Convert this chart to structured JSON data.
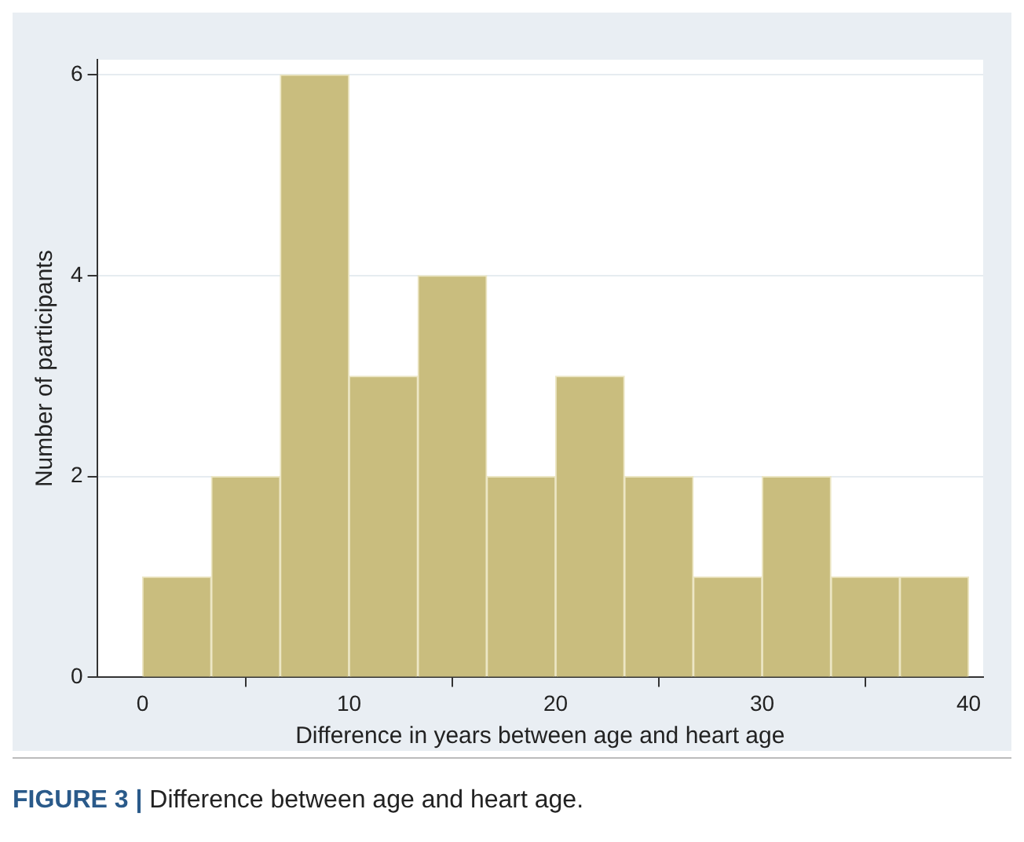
{
  "chart_data": {
    "type": "histogram",
    "xlabel": "Difference in years between age and heart age",
    "ylabel": "Number of participants",
    "bins": [
      0,
      3.33,
      6.67,
      10,
      13.33,
      16.67,
      20,
      23.33,
      26.67,
      30,
      33.33,
      36.67,
      40
    ],
    "values": [
      1,
      2,
      6,
      3,
      4,
      2,
      3,
      2,
      1,
      2,
      1,
      1
    ],
    "color": "#c9bd7e",
    "xlim": [
      -2.2,
      40.7
    ],
    "xticks": [
      0,
      10,
      20,
      30,
      40
    ],
    "ylim": [
      0,
      6.15
    ],
    "yticks": [
      0,
      2,
      4,
      6
    ],
    "grid": "y",
    "annotations": [
      "FIGURE 3 | Difference between age and heart age."
    ]
  }
}
